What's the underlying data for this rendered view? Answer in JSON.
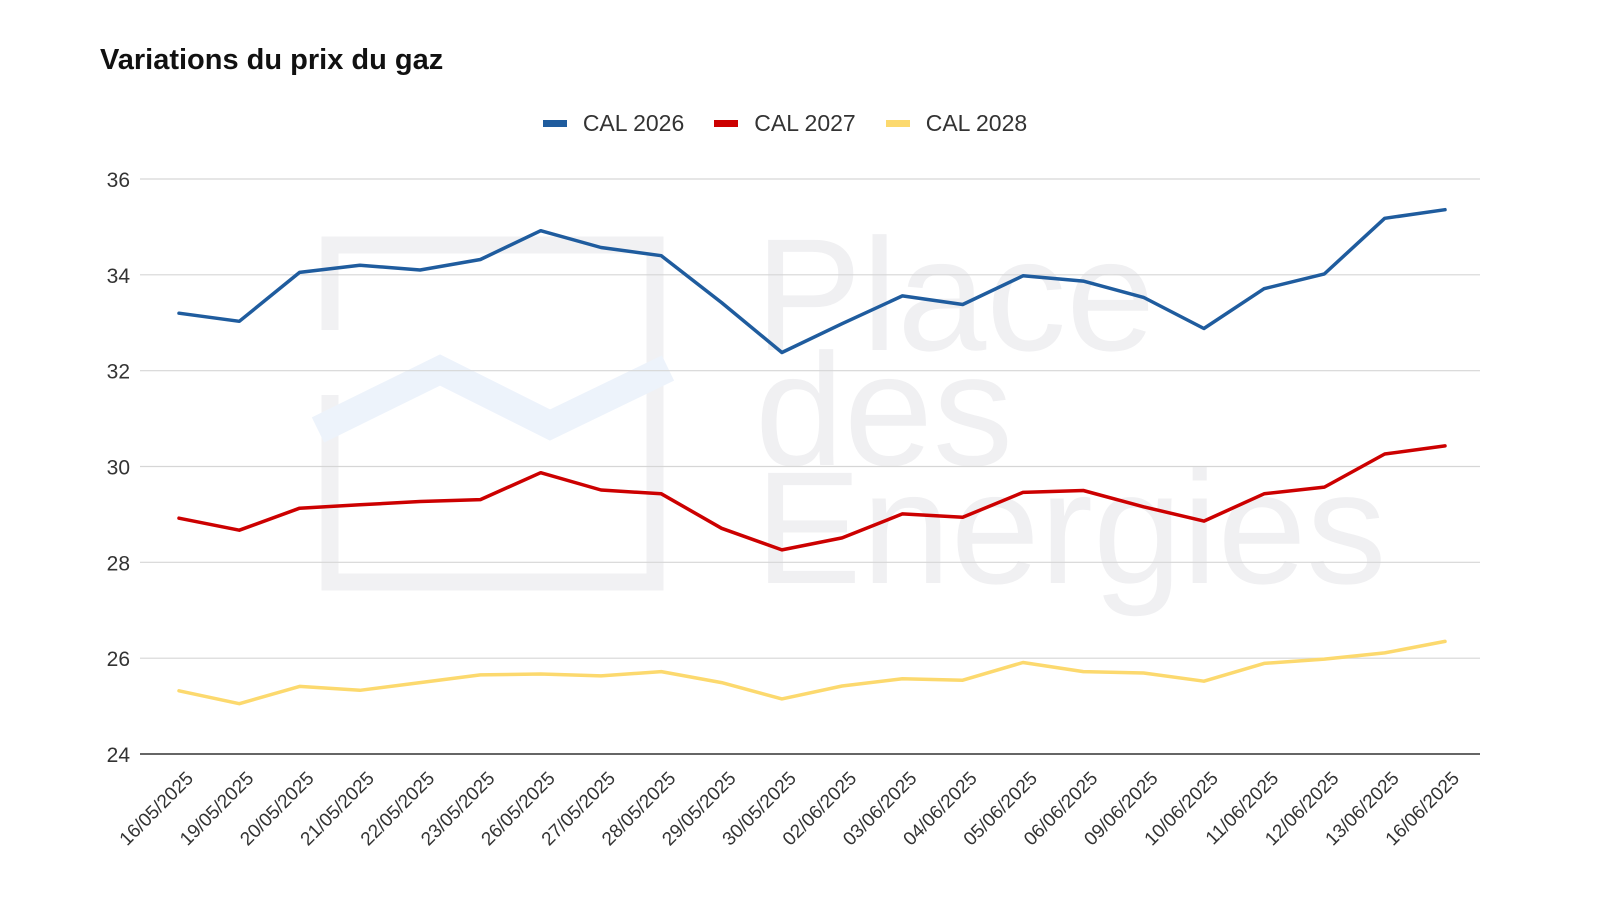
{
  "chart_data": {
    "type": "line",
    "title": "Variations du prix du gaz",
    "watermark": [
      "Place",
      "des",
      "Energies"
    ],
    "xlabel": "",
    "ylabel": "",
    "ylim": [
      24,
      36
    ],
    "yticks": [
      24,
      26,
      28,
      30,
      32,
      34,
      36
    ],
    "grid": true,
    "legend_position": "top",
    "categories": [
      "16/05/2025",
      "19/05/2025",
      "20/05/2025",
      "21/05/2025",
      "22/05/2025",
      "23/05/2025",
      "26/05/2025",
      "27/05/2025",
      "28/05/2025",
      "29/05/2025",
      "30/05/2025",
      "02/06/2025",
      "03/06/2025",
      "04/06/2025",
      "05/06/2025",
      "06/06/2025",
      "09/06/2025",
      "10/06/2025",
      "11/06/2025",
      "12/06/2025",
      "13/06/2025",
      "16/06/2025"
    ],
    "series": [
      {
        "name": "CAL 2026",
        "color": "#1f5c9e",
        "values": [
          33.2,
          33.03,
          34.05,
          34.2,
          34.1,
          34.32,
          34.92,
          34.57,
          34.4,
          33.42,
          32.38,
          32.98,
          33.56,
          33.38,
          33.98,
          33.87,
          33.53,
          32.88,
          33.71,
          34.02,
          35.18,
          35.36
        ]
      },
      {
        "name": "CAL 2027",
        "color": "#cc0000",
        "values": [
          28.92,
          28.67,
          29.13,
          29.2,
          29.27,
          29.31,
          29.87,
          29.51,
          29.43,
          28.71,
          28.26,
          28.51,
          29.01,
          28.94,
          29.46,
          29.5,
          29.16,
          28.86,
          29.43,
          29.57,
          30.26,
          30.43
        ]
      },
      {
        "name": "CAL 2028",
        "color": "#fcd96e",
        "values": [
          25.32,
          25.05,
          25.41,
          25.33,
          25.49,
          25.65,
          25.67,
          25.63,
          25.72,
          25.49,
          25.15,
          25.42,
          25.57,
          25.54,
          25.91,
          25.72,
          25.69,
          25.52,
          25.89,
          25.98,
          26.11,
          26.35
        ]
      }
    ]
  }
}
